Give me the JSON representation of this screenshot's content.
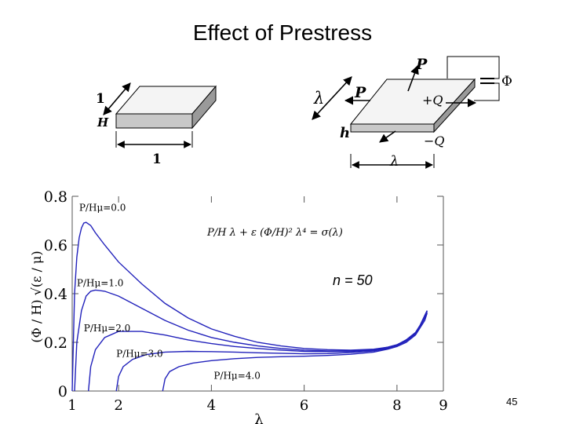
{
  "slide": {
    "title": "Effect of Prestress",
    "number": "45"
  },
  "diagram": {
    "reference_block": {
      "side_label": "1",
      "thickness_label": "H",
      "width_label": "1"
    },
    "stretched_block": {
      "force_top": "P",
      "force_side": "P",
      "stretch_label": "λ",
      "width_label": "λ",
      "thickness_label": "h",
      "charge_top": "+Q",
      "charge_bottom": "−Q",
      "potential_label": "Φ"
    }
  },
  "equation": {
    "text": "P/H λ + ε (Φ/H)² λ⁴ = σ(λ)"
  },
  "annotation": {
    "n": "n = 50"
  },
  "chart_data": {
    "type": "line",
    "title": "",
    "xlabel": "λ",
    "ylabel": "(Φ / H) √(ε / μ)",
    "xlim": [
      1,
      9
    ],
    "ylim": [
      0,
      0.8
    ],
    "x_ticks": [
      "1",
      "2",
      "4",
      "6",
      "8",
      "9"
    ],
    "y_ticks": [
      "0",
      "0.2",
      "0.4",
      "0.6",
      "0.8"
    ],
    "line_color": "#2222bb",
    "series": [
      {
        "name": "P/Hμ=0.0",
        "points": [
          [
            1.0,
            0.0
          ],
          [
            1.05,
            0.4
          ],
          [
            1.1,
            0.55
          ],
          [
            1.15,
            0.63
          ],
          [
            1.2,
            0.67
          ],
          [
            1.25,
            0.69
          ],
          [
            1.3,
            0.693
          ],
          [
            1.4,
            0.68
          ],
          [
            1.5,
            0.65
          ],
          [
            1.7,
            0.6
          ],
          [
            2.0,
            0.53
          ],
          [
            2.5,
            0.44
          ],
          [
            3.0,
            0.36
          ],
          [
            3.5,
            0.3
          ],
          [
            4.0,
            0.255
          ],
          [
            4.5,
            0.225
          ],
          [
            5.0,
            0.2
          ],
          [
            5.5,
            0.185
          ],
          [
            6.0,
            0.175
          ],
          [
            6.5,
            0.17
          ],
          [
            7.0,
            0.168
          ],
          [
            7.5,
            0.172
          ],
          [
            7.8,
            0.18
          ],
          [
            8.0,
            0.19
          ],
          [
            8.2,
            0.21
          ],
          [
            8.4,
            0.24
          ],
          [
            8.5,
            0.27
          ],
          [
            8.6,
            0.31
          ],
          [
            8.65,
            0.33
          ]
        ]
      },
      {
        "name": "P/Hμ=1.0",
        "points": [
          [
            1.05,
            0.0
          ],
          [
            1.1,
            0.2
          ],
          [
            1.2,
            0.33
          ],
          [
            1.3,
            0.39
          ],
          [
            1.4,
            0.41
          ],
          [
            1.5,
            0.415
          ],
          [
            1.7,
            0.41
          ],
          [
            2.0,
            0.39
          ],
          [
            2.5,
            0.34
          ],
          [
            3.0,
            0.29
          ],
          [
            3.5,
            0.25
          ],
          [
            4.0,
            0.22
          ],
          [
            4.5,
            0.2
          ],
          [
            5.0,
            0.185
          ],
          [
            5.5,
            0.175
          ],
          [
            6.0,
            0.168
          ],
          [
            6.5,
            0.165
          ],
          [
            7.0,
            0.165
          ],
          [
            7.5,
            0.17
          ],
          [
            7.8,
            0.18
          ],
          [
            8.0,
            0.19
          ],
          [
            8.2,
            0.21
          ],
          [
            8.4,
            0.24
          ],
          [
            8.5,
            0.27
          ],
          [
            8.6,
            0.31
          ],
          [
            8.65,
            0.33
          ]
        ]
      },
      {
        "name": "P/Hμ=2.0",
        "points": [
          [
            1.35,
            0.0
          ],
          [
            1.4,
            0.1
          ],
          [
            1.5,
            0.17
          ],
          [
            1.7,
            0.22
          ],
          [
            2.0,
            0.245
          ],
          [
            2.5,
            0.245
          ],
          [
            3.0,
            0.23
          ],
          [
            3.5,
            0.21
          ],
          [
            4.0,
            0.195
          ],
          [
            4.5,
            0.183
          ],
          [
            5.0,
            0.175
          ],
          [
            5.5,
            0.168
          ],
          [
            6.0,
            0.163
          ],
          [
            6.5,
            0.162
          ],
          [
            7.0,
            0.163
          ],
          [
            7.5,
            0.168
          ],
          [
            7.8,
            0.178
          ],
          [
            8.0,
            0.188
          ],
          [
            8.2,
            0.21
          ],
          [
            8.4,
            0.24
          ],
          [
            8.5,
            0.27
          ],
          [
            8.6,
            0.31
          ],
          [
            8.65,
            0.33
          ]
        ]
      },
      {
        "name": "P/Hμ=3.0",
        "points": [
          [
            1.95,
            0.0
          ],
          [
            2.0,
            0.06
          ],
          [
            2.1,
            0.1
          ],
          [
            2.3,
            0.13
          ],
          [
            2.6,
            0.15
          ],
          [
            3.0,
            0.16
          ],
          [
            3.5,
            0.163
          ],
          [
            4.0,
            0.162
          ],
          [
            4.5,
            0.16
          ],
          [
            5.0,
            0.157
          ],
          [
            5.5,
            0.155
          ],
          [
            6.0,
            0.153
          ],
          [
            6.5,
            0.154
          ],
          [
            7.0,
            0.158
          ],
          [
            7.5,
            0.165
          ],
          [
            7.8,
            0.175
          ],
          [
            8.0,
            0.186
          ],
          [
            8.2,
            0.205
          ],
          [
            8.4,
            0.235
          ],
          [
            8.5,
            0.265
          ],
          [
            8.6,
            0.3
          ],
          [
            8.65,
            0.325
          ]
        ]
      },
      {
        "name": "P/Hμ=4.0",
        "points": [
          [
            2.95,
            0.0
          ],
          [
            3.0,
            0.05
          ],
          [
            3.1,
            0.08
          ],
          [
            3.3,
            0.1
          ],
          [
            3.6,
            0.115
          ],
          [
            4.0,
            0.125
          ],
          [
            4.5,
            0.133
          ],
          [
            5.0,
            0.138
          ],
          [
            5.5,
            0.141
          ],
          [
            6.0,
            0.143
          ],
          [
            6.5,
            0.146
          ],
          [
            7.0,
            0.151
          ],
          [
            7.5,
            0.16
          ],
          [
            7.8,
            0.172
          ],
          [
            8.0,
            0.183
          ],
          [
            8.2,
            0.2
          ],
          [
            8.4,
            0.23
          ],
          [
            8.5,
            0.26
          ],
          [
            8.6,
            0.29
          ],
          [
            8.65,
            0.32
          ]
        ]
      }
    ]
  }
}
